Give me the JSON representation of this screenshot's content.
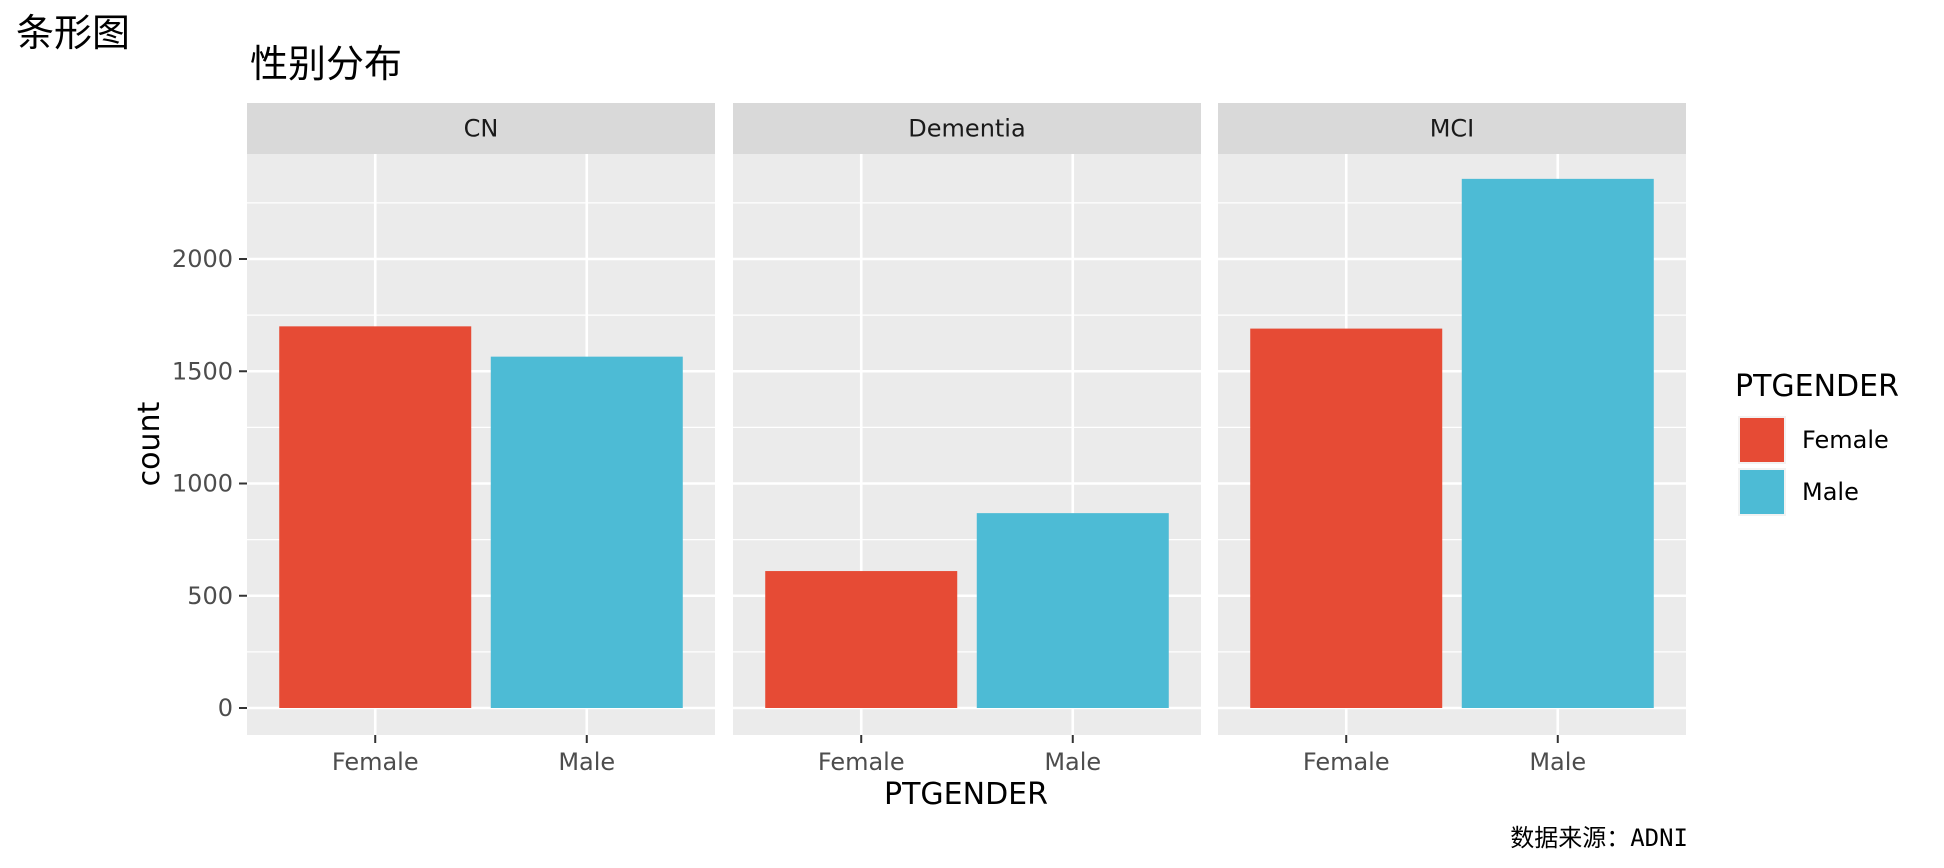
{
  "page_heading": "条形图",
  "caption": "数据来源：ADNI",
  "colors": {
    "panel_bg": "#EBEBEB",
    "strip_bg": "#D9D9D9",
    "grid": "#FFFFFF",
    "axis_text": "#4D4D4D",
    "female": "#E64B35",
    "male": "#4DBBD5"
  },
  "chart_data": {
    "type": "bar",
    "title": "性别分布",
    "xlabel": "PTGENDER",
    "ylabel": "count",
    "ylim": [
      0,
      2500
    ],
    "yticks": [
      0,
      500,
      1000,
      1500,
      2000
    ],
    "categories": [
      "Female",
      "Male"
    ],
    "facets": [
      {
        "label": "CN",
        "values": [
          1700,
          1565
        ]
      },
      {
        "label": "Dementia",
        "values": [
          610,
          868
        ]
      },
      {
        "label": "MCI",
        "values": [
          1690,
          2357
        ]
      }
    ],
    "legend": {
      "title": "PTGENDER",
      "position": "right",
      "items": [
        {
          "label": "Female",
          "color": "#E64B35"
        },
        {
          "label": "Male",
          "color": "#4DBBD5"
        }
      ]
    }
  }
}
